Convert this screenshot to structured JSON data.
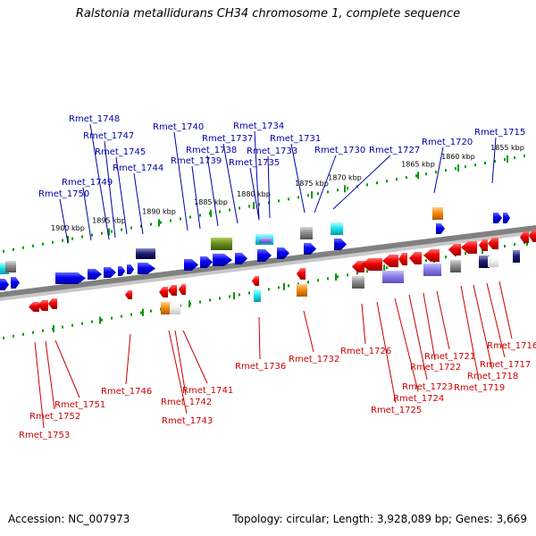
{
  "title": "Ralstonia metallidurans CH34 chromosome 1, complete sequence",
  "footer": {
    "accession": "Accession: NC_007973",
    "summary": "Topology: circular; Length: 3,928,089 bp; Genes: 3,669"
  },
  "colors": {
    "plus_strand_gene": "#0000ee",
    "minus_strand_gene": "#ee0000",
    "ruler_ticks": "#009900",
    "backbone": "#808080",
    "plus_label": "#0000aa",
    "minus_label": "#cc0000"
  },
  "scale_labels": [
    "1900 kbp",
    "1895 kbp",
    "1890 kbp",
    "1885 kbp",
    "1880 kbp",
    "1875 kbp",
    "1870 kbp",
    "1865 kbp",
    "1860 kbp",
    "1855 kbp"
  ],
  "plus_strand_labels": [
    "Rmet_1748",
    "Rmet_1747",
    "Rmet_1745",
    "Rmet_1744",
    "Rmet_1749",
    "Rmet_1750",
    "Rmet_1740",
    "Rmet_1739",
    "Rmet_1738",
    "Rmet_1737",
    "Rmet_1734",
    "Rmet_1733",
    "Rmet_1735",
    "Rmet_1731",
    "Rmet_1730",
    "Rmet_1727",
    "Rmet_1720",
    "Rmet_1715"
  ],
  "minus_strand_labels": [
    "Rmet_1746",
    "Rmet_1751",
    "Rmet_1752",
    "Rmet_1753",
    "Rmet_1742",
    "Rmet_1743",
    "Rmet_1741",
    "Rmet_1736",
    "Rmet_1732",
    "Rmet_1726",
    "Rmet_1725",
    "Rmet_1724",
    "Rmet_1723",
    "Rmet_1722",
    "Rmet_1721",
    "Rmet_1719",
    "Rmet_1718",
    "Rmet_1717",
    "Rmet_1716"
  ]
}
